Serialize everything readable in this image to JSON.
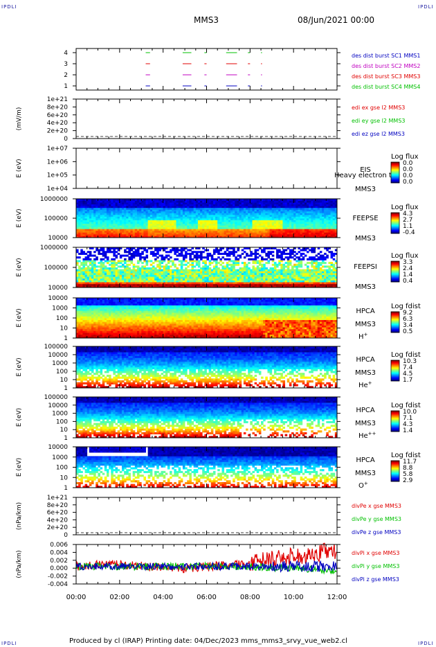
{
  "corners": {
    "tl": "IPDLI",
    "tr": "IPDLI",
    "bl": "IPDLI",
    "br": "IPDLI"
  },
  "header": {
    "title": "MMS3",
    "date": "08/Jun/2021 00:00"
  },
  "footer": "Produced by cl (IRAP)   Printing date: 04/Dec/2023   mms_mms3_srvy_vue_web2.cl",
  "colors": {
    "red": "#e00000",
    "green": "#00c000",
    "magenta": "#c000c0",
    "blue": "#0000c0"
  },
  "chart_data": [
    {
      "type": "line",
      "name": "burst",
      "yticks": [
        "1",
        "2",
        "3",
        "4"
      ],
      "legend": [
        {
          "text": "des dist burst SC1 MMS1",
          "color": "#0000c0"
        },
        {
          "text": "des dist burst SC2 MMS2",
          "color": "#c000c0"
        },
        {
          "text": "des dist burst SC3 MMS3",
          "color": "#e00000"
        },
        {
          "text": "des dist burst SC4 MMS4",
          "color": "#00c000"
        }
      ],
      "segments": [
        [
          3.2,
          3.4
        ],
        [
          4.9,
          5.3
        ],
        [
          5.9,
          6.0
        ],
        [
          6.9,
          7.4
        ],
        [
          7.9,
          8.0
        ],
        [
          8.5,
          8.55
        ]
      ]
    },
    {
      "type": "line",
      "name": "edi",
      "ylabel": "(mV/m)",
      "yticks": [
        "0",
        "2e+20",
        "4e+20",
        "6e+20",
        "8e+20",
        "1e+21"
      ],
      "legend": [
        {
          "text": "edi ex gse l2 MMS3",
          "color": "#e00000"
        },
        {
          "text": "edi ey gse l2 MMS3",
          "color": "#00c000"
        },
        {
          "text": "edi ez gse l2 MMS3",
          "color": "#0000c0"
        }
      ]
    },
    {
      "type": "heatmap",
      "name": "eis",
      "ylabel": "E (eV)",
      "yticks": [
        "1e+04",
        "1e+05",
        "1e+06",
        "1e+07"
      ],
      "label": [
        "EIS",
        "MMS3"
      ],
      "overlap": "Heavy electron to",
      "cbar_title": "Log flux",
      "cbar": [
        "0.0",
        "0.0",
        "0.0",
        "0.0"
      ]
    },
    {
      "type": "heatmap",
      "name": "feepse",
      "ylabel": "E (eV)",
      "yticks": [
        "10000",
        "100000",
        "1000000"
      ],
      "label": [
        "FEEPSE",
        "MMS3"
      ],
      "cbar_title": "Log flux",
      "cbar": [
        "4.3",
        "2.7",
        "1.1",
        "-0.4"
      ]
    },
    {
      "type": "heatmap",
      "name": "feepsi",
      "ylabel": "E (eV)",
      "yticks": [
        "10000",
        "100000",
        "1000000"
      ],
      "label": [
        "FEEPSI",
        "MMS3"
      ],
      "cbar_title": "Log flux",
      "cbar": [
        "3.3",
        "2.4",
        "1.4",
        "0.4"
      ]
    },
    {
      "type": "heatmap",
      "name": "hpca-h",
      "ylabel": "E (eV)",
      "yticks": [
        "1",
        "10",
        "100",
        "1000",
        "10000"
      ],
      "label": [
        "HPCA",
        "MMS3",
        "H+"
      ],
      "cbar_title": "Log fdist",
      "cbar": [
        "9.2",
        "6.3",
        "3.4",
        "0.5"
      ]
    },
    {
      "type": "heatmap",
      "name": "hpca-he",
      "ylabel": "E (eV)",
      "yticks": [
        "1",
        "10",
        "100",
        "1000",
        "10000",
        "100000"
      ],
      "label": [
        "HPCA",
        "MMS3",
        "He+"
      ],
      "cbar_title": "Log fdist",
      "cbar": [
        "10.3",
        "7.4",
        "4.5",
        "1.7"
      ]
    },
    {
      "type": "heatmap",
      "name": "hpca-hepp",
      "ylabel": "E (eV)",
      "yticks": [
        "1",
        "10",
        "100",
        "1000",
        "10000",
        "100000"
      ],
      "label": [
        "HPCA",
        "MMS3",
        "He++"
      ],
      "cbar_title": "Log fdist",
      "cbar": [
        "10.0",
        "7.1",
        "4.3",
        "1.4"
      ]
    },
    {
      "type": "heatmap",
      "name": "hpca-o",
      "ylabel": "E (eV)",
      "yticks": [
        "1",
        "10",
        "100",
        "1000",
        "10000"
      ],
      "label": [
        "HPCA",
        "MMS3",
        "O+"
      ],
      "cbar_title": "Log fdist",
      "cbar": [
        "11.7",
        "8.8",
        "5.8",
        "2.9"
      ]
    },
    {
      "type": "line",
      "name": "divpe",
      "ylabel": "(nPa/km)",
      "yticks": [
        "0",
        "2e+20",
        "4e+20",
        "6e+20",
        "8e+20",
        "1e+21"
      ],
      "legend": [
        {
          "text": "divPe x gse MMS3",
          "color": "#e00000"
        },
        {
          "text": "divPe y gse MMS3",
          "color": "#00c000"
        },
        {
          "text": "divPe z gse MMS3",
          "color": "#0000c0"
        }
      ]
    },
    {
      "type": "line",
      "name": "divpi",
      "ylabel": "(nPa/km)",
      "yticks": [
        "-0.004",
        "-0.002",
        "0.000",
        "0.002",
        "0.004",
        "0.006"
      ],
      "legend": [
        {
          "text": "divPi x gse MMS3",
          "color": "#e00000"
        },
        {
          "text": "divPi y gse MMS3",
          "color": "#00c000"
        },
        {
          "text": "divPi z gse MMS3",
          "color": "#0000c0"
        }
      ]
    }
  ],
  "xaxis": {
    "ticks": [
      "00:00",
      "02:00",
      "04:00",
      "06:00",
      "08:00",
      "10:00",
      "12:00"
    ]
  }
}
